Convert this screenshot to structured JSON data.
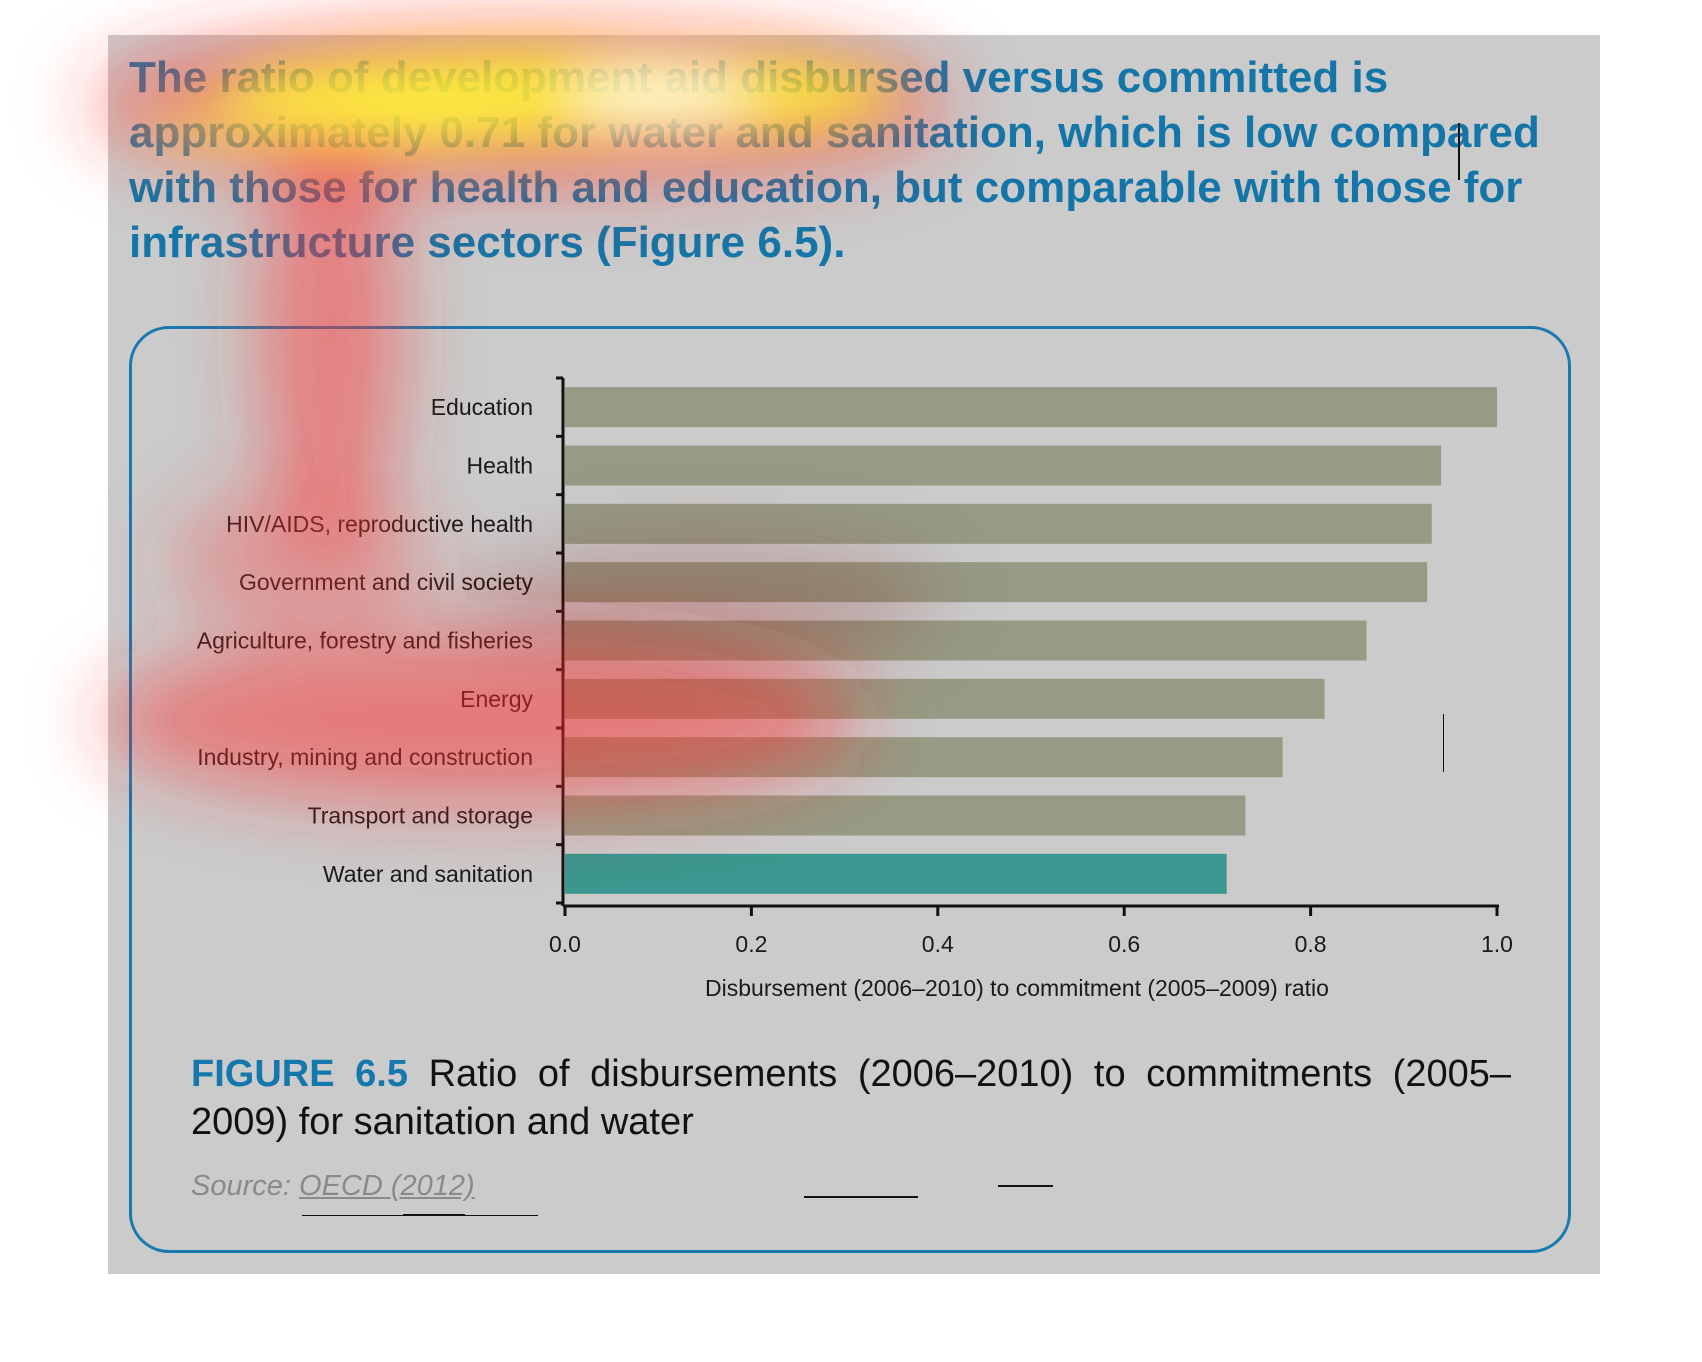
{
  "headline": "The ratio of development aid disbursed versus committed is approximately 0.71 for water and sanitation, which is low compared with those for health and education, but comparable with those for infrastructure sectors (Figure 6.5).",
  "caption": {
    "label": "FIGURE 6.5",
    "text": "Ratio of disbursements (2006–2010) to commitments (2005–2009) for sanitation and water"
  },
  "source": {
    "prefix": "Source:",
    "link": "OECD (2012)"
  },
  "colors": {
    "bar": "#979b85",
    "highlight_bar": "#3b978f",
    "headline": "#1476a8",
    "frame": "#1a79ae"
  },
  "chart_data": {
    "type": "bar",
    "orientation": "horizontal",
    "categories": [
      "Education",
      "Health",
      "HIV/AIDS, reproductive health",
      "Government and civil society",
      "Agriculture, forestry and fisheries",
      "Energy",
      "Industry, mining and construction",
      "Transport and storage",
      "Water and sanitation"
    ],
    "values": [
      1.0,
      0.94,
      0.93,
      0.925,
      0.86,
      0.815,
      0.77,
      0.73,
      0.71
    ],
    "highlight": "Water and sanitation",
    "xlabel": "Disbursement (2006–2010) to commitment (2005–2009) ratio",
    "ylabel": "",
    "xlim": [
      0,
      1.0
    ],
    "xticks": [
      "0.0",
      "0.2",
      "0.4",
      "0.6",
      "0.8",
      "1.0"
    ],
    "grid": false
  }
}
